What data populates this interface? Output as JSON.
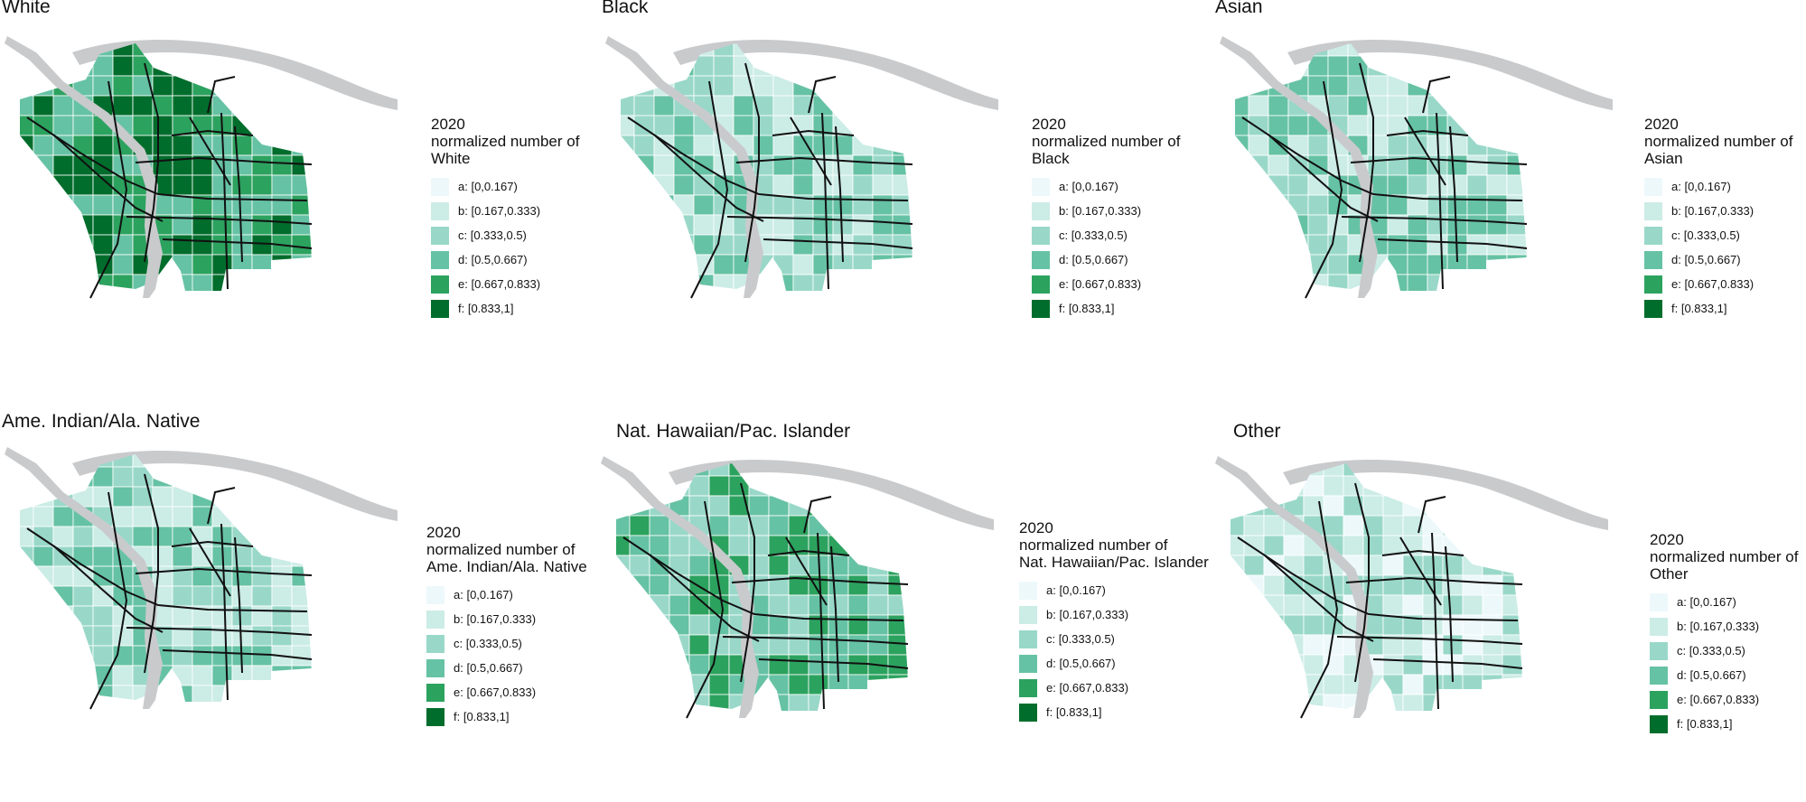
{
  "legend": {
    "year": "2020",
    "title_prefix": "normalized number of",
    "classes": [
      {
        "label": "a: [0,0.167)",
        "color": "#edf8fb"
      },
      {
        "label": "b: [0.167,0.333)",
        "color": "#ccece6"
      },
      {
        "label": "c: [0.333,0.5)",
        "color": "#99d8c9"
      },
      {
        "label": "d: [0.5,0.667)",
        "color": "#66c2a4"
      },
      {
        "label": "e: [0.667,0.833)",
        "color": "#2ca25f"
      },
      {
        "label": "f: [0.833,1]",
        "color": "#006d2c"
      }
    ]
  },
  "panels": [
    {
      "title": "White",
      "legend_name": "White",
      "dominant_class": "e"
    },
    {
      "title": "Black",
      "legend_name": "Black",
      "dominant_class": "c"
    },
    {
      "title": "Asian",
      "legend_name": "Asian",
      "dominant_class": "c"
    },
    {
      "title": "Ame. Indian/Ala. Native",
      "legend_name": "Ame. Indian/Ala. Native",
      "dominant_class": "c"
    },
    {
      "title": "Nat. Hawaiian/Pac. Islander",
      "legend_name": "Nat. Hawaiian/Pac. Islander",
      "dominant_class": "d"
    },
    {
      "title": "Other",
      "legend_name": "Other",
      "dominant_class": "b"
    }
  ],
  "colors": {
    "river": "#c9cacc",
    "roads": "#111111",
    "tract_border": "#ffffff"
  }
}
